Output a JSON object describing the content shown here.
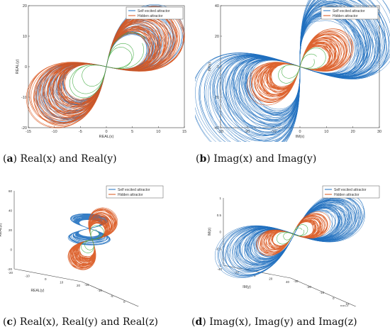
{
  "legend": {
    "self_excited": "Self excited attractor",
    "hidden": "Hidden attractor"
  },
  "colors": {
    "self_excited": "#1f6fbf",
    "hidden": "#d95319",
    "points": "#3aa83a"
  },
  "chart_data": [
    {
      "id": "a",
      "type": "line",
      "panel_letter": "a",
      "caption": "Real(x) and Real(y)",
      "xlabel": "REAL(x)",
      "ylabel": "REAL(y)",
      "xlim": [
        -15,
        15
      ],
      "ylim": [
        -20,
        20
      ],
      "xticks": [
        -15,
        -10,
        -5,
        0,
        5,
        10,
        15
      ],
      "yticks": [
        -20,
        -10,
        0,
        10,
        20
      ],
      "series": [
        {
          "name": "Self excited attractor",
          "color": "#1f6fbf",
          "extent": {
            "x": [
              -12,
              12
            ],
            "y": [
              -13,
              13
            ]
          }
        },
        {
          "name": "Hidden attractor",
          "color": "#d95319",
          "extent": {
            "x": [
              -13,
              13
            ],
            "y": [
              -14,
              14
            ]
          }
        }
      ],
      "legend_position": "top-right"
    },
    {
      "id": "b",
      "type": "line",
      "panel_letter": "b",
      "caption": "Imag(x) and Imag(y)",
      "xlabel": "IM(x)",
      "ylabel": "IM(y)",
      "xlim": [
        -30,
        30
      ],
      "ylim": [
        -40,
        40
      ],
      "xticks": [
        -30,
        -20,
        -10,
        0,
        10,
        20,
        30
      ],
      "yticks": [
        -40,
        -20,
        0,
        20,
        40
      ],
      "series": [
        {
          "name": "Self excited attractor",
          "color": "#1f6fbf",
          "extent": {
            "x": [
              -25,
              25
            ],
            "y": [
              -28,
              30
            ]
          }
        },
        {
          "name": "Hidden attractor",
          "color": "#d95319",
          "extent": {
            "x": [
              -12,
              12
            ],
            "y": [
              -12,
              12
            ]
          }
        }
      ],
      "legend_position": "top-right"
    },
    {
      "id": "c",
      "type": "line",
      "panel_letter": "c",
      "caption": "Real(x), Real(y) and Real(z)",
      "xlabel": "REAL(x)",
      "ylabel": "REAL(y)",
      "zlabel": "REAL(z)",
      "xticks": [
        -15,
        -10,
        -5,
        0,
        5,
        10,
        15
      ],
      "yticks": [
        -20,
        -10,
        0,
        10,
        20
      ],
      "zticks": [
        -20,
        0,
        20,
        40,
        60
      ],
      "zlim": [
        -20,
        60
      ],
      "series": [
        {
          "name": "Self excited attractor",
          "color": "#1f6fbf"
        },
        {
          "name": "Hidden attractor",
          "color": "#d95319"
        }
      ],
      "legend_position": "top-right"
    },
    {
      "id": "d",
      "type": "line",
      "panel_letter": "d",
      "caption": "Imag(x), Imag(y) and Imag(z)",
      "xlabel": "IM(x)",
      "ylabel": "IM(y)",
      "zlabel": "IM(z)",
      "xticks": [
        -30,
        -20,
        -10,
        0,
        10,
        20,
        30
      ],
      "yticks": [
        -40,
        -20,
        0,
        20,
        40
      ],
      "zticks": [
        -1,
        -0.5,
        0,
        0.5,
        1
      ],
      "zlim": [
        -1,
        1
      ],
      "series": [
        {
          "name": "Self excited attractor",
          "color": "#1f6fbf"
        },
        {
          "name": "Hidden attractor",
          "color": "#d95319"
        }
      ],
      "legend_position": "top-right"
    }
  ]
}
